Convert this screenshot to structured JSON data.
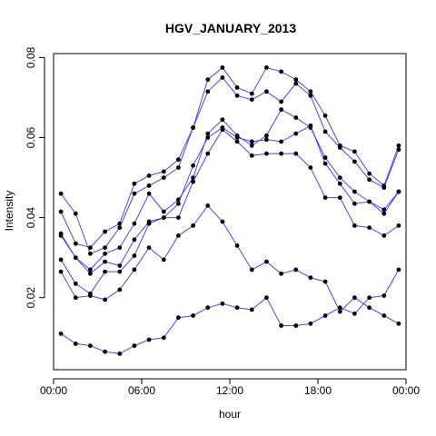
{
  "chart_data": {
    "type": "line",
    "title": "HGV_JANUARY_2013",
    "xlabel": "hour",
    "ylabel": "Intensity",
    "xlim": [
      0,
      24
    ],
    "ylim": [
      0.002,
      0.081
    ],
    "x_ticks": [
      {
        "value": 0,
        "label": "00:00"
      },
      {
        "value": 6,
        "label": "06:00"
      },
      {
        "value": 12,
        "label": "12:00"
      },
      {
        "value": 18,
        "label": "18:00"
      },
      {
        "value": 24,
        "label": "00:00"
      }
    ],
    "y_ticks": [
      {
        "value": 0.02,
        "label": "0.02"
      },
      {
        "value": 0.04,
        "label": "0.04"
      },
      {
        "value": 0.06,
        "label": "0.06"
      },
      {
        "value": 0.08,
        "label": "0.08"
      }
    ],
    "x": [
      0.5,
      1.5,
      2.5,
      3.5,
      4.5,
      5.5,
      6.5,
      7.5,
      8.5,
      9.5,
      10.5,
      11.5,
      12.5,
      13.5,
      14.5,
      15.5,
      16.5,
      17.5,
      18.5,
      19.5,
      20.5,
      21.5,
      22.5,
      23.5
    ],
    "line_color": "#4a4ad8",
    "point_color": "#000000",
    "grid": false,
    "legend": "none",
    "series": [
      {
        "values": [
          0.0415,
          0.0335,
          0.0325,
          0.0365,
          0.0385,
          0.0485,
          0.0505,
          0.0515,
          0.0545,
          0.0625,
          0.0745,
          0.0775,
          0.0725,
          0.071,
          0.0775,
          0.0765,
          0.0745,
          0.0715,
          0.0655,
          0.058,
          0.0565,
          0.051,
          0.048,
          0.058
        ]
      },
      {
        "values": [
          0.046,
          0.041,
          0.031,
          0.0325,
          0.0375,
          0.046,
          0.048,
          0.05,
          0.0525,
          0.0625,
          0.0715,
          0.075,
          0.0705,
          0.0695,
          0.0715,
          0.069,
          0.0735,
          0.0705,
          0.0615,
          0.0575,
          0.054,
          0.0495,
          0.0475,
          0.057
        ]
      },
      {
        "values": [
          0.0355,
          0.03,
          0.027,
          0.031,
          0.0325,
          0.0385,
          0.046,
          0.0415,
          0.0445,
          0.05,
          0.061,
          0.0645,
          0.0605,
          0.058,
          0.0605,
          0.067,
          0.065,
          0.0625,
          0.055,
          0.05,
          0.0465,
          0.044,
          0.042,
          0.0465
        ]
      },
      {
        "values": [
          0.036,
          0.03,
          0.026,
          0.029,
          0.028,
          0.0345,
          0.039,
          0.04,
          0.0435,
          0.053,
          0.06,
          0.0625,
          0.06,
          0.059,
          0.0595,
          0.059,
          0.061,
          0.063,
          0.0535,
          0.0485,
          0.0435,
          0.044,
          0.041,
          0.0465
        ]
      },
      {
        "values": [
          0.0295,
          0.0235,
          0.021,
          0.0265,
          0.0265,
          0.0305,
          0.0385,
          0.04,
          0.04,
          0.049,
          0.056,
          0.062,
          0.059,
          0.0555,
          0.056,
          0.056,
          0.056,
          0.0525,
          0.045,
          0.045,
          0.038,
          0.0375,
          0.0355,
          0.038
        ]
      },
      {
        "values": [
          0.0265,
          0.02,
          0.0205,
          0.0195,
          0.022,
          0.027,
          0.0325,
          0.0295,
          0.0355,
          0.038,
          0.043,
          0.039,
          0.033,
          0.027,
          0.029,
          0.026,
          0.027,
          0.025,
          0.024,
          0.0165,
          0.02,
          0.0175,
          0.0155,
          0.0135
        ]
      },
      {
        "values": [
          0.011,
          0.0085,
          0.008,
          0.0065,
          0.006,
          0.008,
          0.0095,
          0.01,
          0.015,
          0.0155,
          0.0175,
          0.0185,
          0.0175,
          0.017,
          0.02,
          0.013,
          0.013,
          0.0135,
          0.0155,
          0.0175,
          0.016,
          0.02,
          0.0205,
          0.027
        ]
      }
    ]
  }
}
